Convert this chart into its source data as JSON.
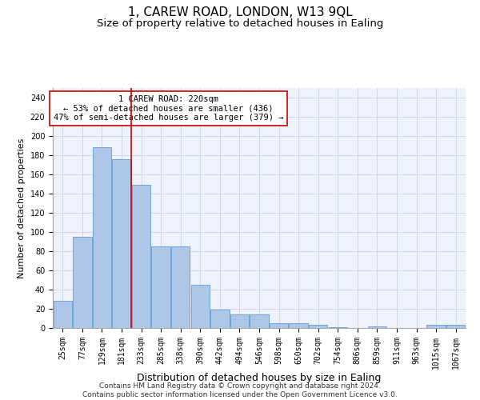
{
  "title": "1, CAREW ROAD, LONDON, W13 9QL",
  "subtitle": "Size of property relative to detached houses in Ealing",
  "xlabel": "Distribution of detached houses by size in Ealing",
  "ylabel": "Number of detached properties",
  "bar_color": "#aec6e8",
  "bar_edge_color": "#5a9fd4",
  "grid_color": "#d0d8e8",
  "background_color": "#eef2fa",
  "categories": [
    "25sqm",
    "77sqm",
    "129sqm",
    "181sqm",
    "233sqm",
    "285sqm",
    "338sqm",
    "390sqm",
    "442sqm",
    "494sqm",
    "546sqm",
    "598sqm",
    "650sqm",
    "702sqm",
    "754sqm",
    "806sqm",
    "859sqm",
    "911sqm",
    "963sqm",
    "1015sqm",
    "1067sqm"
  ],
  "values": [
    28,
    95,
    188,
    176,
    149,
    85,
    85,
    45,
    19,
    14,
    14,
    5,
    5,
    3,
    1,
    0,
    2,
    0,
    0,
    3,
    3
  ],
  "ylim": [
    0,
    250
  ],
  "yticks": [
    0,
    20,
    40,
    60,
    80,
    100,
    120,
    140,
    160,
    180,
    200,
    220,
    240
  ],
  "vline_x": 3.5,
  "vline_color": "#cc0000",
  "annotation_line1": "1 CAREW ROAD: 220sqm",
  "annotation_line2": "← 53% of detached houses are smaller (436)",
  "annotation_line3": "47% of semi-detached houses are larger (379) →",
  "annotation_box_color": "#ffffff",
  "annotation_box_edge": "#cc0000",
  "footer_line1": "Contains HM Land Registry data © Crown copyright and database right 2024.",
  "footer_line2": "Contains public sector information licensed under the Open Government Licence v3.0.",
  "title_fontsize": 11,
  "subtitle_fontsize": 9.5,
  "xlabel_fontsize": 9,
  "ylabel_fontsize": 8,
  "tick_fontsize": 7,
  "annotation_fontsize": 7.5,
  "footer_fontsize": 6.5
}
